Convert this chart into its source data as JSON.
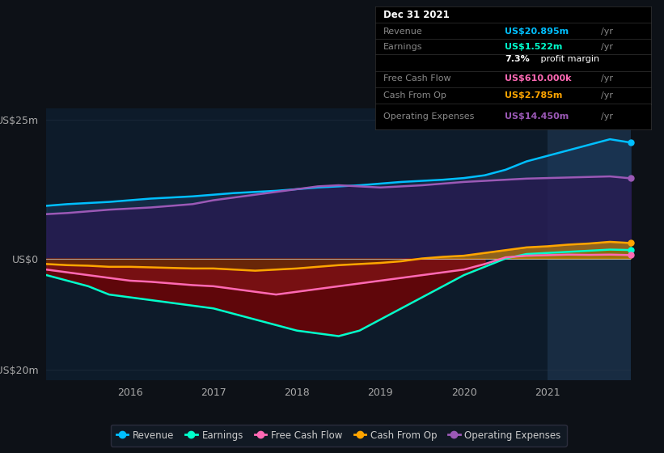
{
  "background_color": "#0d1117",
  "plot_bg_color": "#0d1b2a",
  "years": [
    2015.0,
    2015.25,
    2015.5,
    2015.75,
    2016.0,
    2016.25,
    2016.5,
    2016.75,
    2017.0,
    2017.25,
    2017.5,
    2017.75,
    2018.0,
    2018.25,
    2018.5,
    2018.75,
    2019.0,
    2019.25,
    2019.5,
    2019.75,
    2020.0,
    2020.25,
    2020.5,
    2020.75,
    2021.0,
    2021.25,
    2021.5,
    2021.75,
    2022.0
  ],
  "revenue": [
    9.5,
    9.8,
    10.0,
    10.2,
    10.5,
    10.8,
    11.0,
    11.2,
    11.5,
    11.8,
    12.0,
    12.2,
    12.5,
    12.8,
    13.0,
    13.2,
    13.5,
    13.8,
    14.0,
    14.2,
    14.5,
    15.0,
    16.0,
    17.5,
    18.5,
    19.5,
    20.5,
    21.5,
    20.895
  ],
  "earnings": [
    -3.0,
    -4.0,
    -5.0,
    -6.5,
    -7.0,
    -7.5,
    -8.0,
    -8.5,
    -9.0,
    -10.0,
    -11.0,
    -12.0,
    -13.0,
    -13.5,
    -14.0,
    -13.0,
    -11.0,
    -9.0,
    -7.0,
    -5.0,
    -3.0,
    -1.5,
    0.0,
    0.8,
    1.0,
    1.2,
    1.4,
    1.6,
    1.522
  ],
  "free_cash_flow": [
    -2.0,
    -2.5,
    -3.0,
    -3.5,
    -4.0,
    -4.2,
    -4.5,
    -4.8,
    -5.0,
    -5.5,
    -6.0,
    -6.5,
    -6.0,
    -5.5,
    -5.0,
    -4.5,
    -4.0,
    -3.5,
    -3.0,
    -2.5,
    -2.0,
    -1.0,
    0.2,
    0.5,
    0.6,
    0.7,
    0.65,
    0.7,
    0.61
  ],
  "cash_from_op": [
    -1.0,
    -1.2,
    -1.3,
    -1.5,
    -1.5,
    -1.6,
    -1.7,
    -1.8,
    -1.8,
    -2.0,
    -2.2,
    -2.0,
    -1.8,
    -1.5,
    -1.2,
    -1.0,
    -0.8,
    -0.5,
    0.0,
    0.3,
    0.5,
    1.0,
    1.5,
    2.0,
    2.2,
    2.5,
    2.7,
    3.0,
    2.785
  ],
  "operating_expenses": [
    8.0,
    8.2,
    8.5,
    8.8,
    9.0,
    9.2,
    9.5,
    9.8,
    10.5,
    11.0,
    11.5,
    12.0,
    12.5,
    13.0,
    13.2,
    13.0,
    12.8,
    13.0,
    13.2,
    13.5,
    13.8,
    14.0,
    14.2,
    14.4,
    14.5,
    14.6,
    14.7,
    14.8,
    14.45
  ],
  "revenue_color": "#00bfff",
  "earnings_color": "#00ffcc",
  "fcf_color": "#ff69b4",
  "cashop_color": "#ffa500",
  "opex_color": "#9b59b6",
  "ylim": [
    -22,
    27
  ],
  "yticks": [
    -20,
    0,
    25
  ],
  "ytick_labels": [
    "-US$20m",
    "US$0",
    "US$25m"
  ],
  "xticks": [
    2016,
    2017,
    2018,
    2019,
    2020,
    2021
  ],
  "grid_color": "#2a3a4a",
  "zero_line_color": "#cccccc",
  "info_box": {
    "date": "Dec 31 2021",
    "revenue_val": "US$20.895m",
    "earnings_val": "US$1.522m",
    "margin": "7.3%",
    "fcf_val": "US$610.000k",
    "cashop_val": "US$2.785m",
    "opex_val": "US$14.450m"
  },
  "legend_items": [
    "Revenue",
    "Earnings",
    "Free Cash Flow",
    "Cash From Op",
    "Operating Expenses"
  ],
  "legend_colors": [
    "#00bfff",
    "#00ffcc",
    "#ff69b4",
    "#ffa500",
    "#9b59b6"
  ]
}
